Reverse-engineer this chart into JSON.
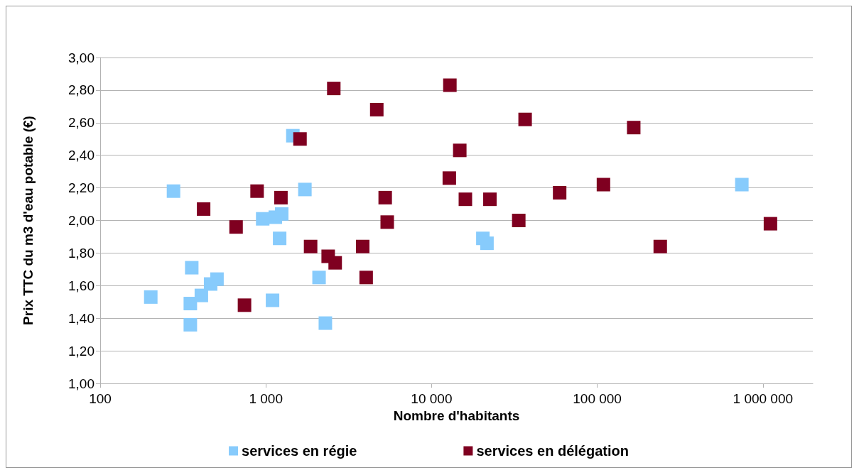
{
  "chart_data": {
    "type": "scatter",
    "xlabel": "Nombre d'habitants",
    "ylabel": "Prix TTC du m3 d'eau potable (€)",
    "log": "x",
    "grid": "y",
    "legend": "bottom",
    "marker": "square",
    "xlim": [
      100,
      2000000
    ],
    "xticks": [
      100,
      {
        "value": 1000,
        "label": "1 000"
      },
      {
        "value": 10000,
        "label": "10 000"
      },
      {
        "value": 100000,
        "label": "100 000"
      },
      {
        "value": 1000000,
        "label": "1 000 000"
      }
    ],
    "ylim": [
      1,
      3
    ],
    "yticks": [
      {
        "value": 1,
        "label": "1,00"
      },
      {
        "value": 1.2,
        "label": "1,20"
      },
      {
        "value": 1.4,
        "label": "1,40"
      },
      {
        "value": 1.6,
        "label": "1,60"
      },
      {
        "value": 1.8,
        "label": "1,80"
      },
      {
        "value": 2,
        "label": "2,00"
      },
      {
        "value": 2.2,
        "label": "2,20"
      },
      {
        "value": 2.4,
        "label": "2,40"
      },
      {
        "value": 2.6,
        "label": "2,60"
      },
      {
        "value": 2.8,
        "label": "2,80"
      },
      {
        "value": 3,
        "label": "3,00"
      }
    ],
    "series": [
      {
        "name": "services en régie",
        "color": "#87cbfc",
        "x": [
          202,
          277,
          357,
          350,
          350,
          408,
          464,
          507,
          957,
          1140,
          1246,
          1211,
          1097,
          1455,
          1720,
          2094,
          2286,
          20400,
          21600,
          746000
        ],
        "values": [
          1.53,
          2.18,
          1.71,
          1.49,
          1.36,
          1.54,
          1.61,
          1.64,
          2.01,
          2.02,
          2.04,
          1.89,
          1.51,
          2.52,
          2.19,
          1.65,
          1.37,
          1.89,
          1.86,
          2.22
        ]
      },
      {
        "name": "services en délégation",
        "color": "#7f0020",
        "x": [
          2570,
          4670,
          1607,
          421,
          661,
          885,
          1233,
          1862,
          2377,
          2620,
          743,
          3840,
          4030,
          5250,
          5400,
          12900,
          14800,
          12800,
          16000,
          22500,
          36700,
          33600,
          59300,
          109000,
          166000,
          240000,
          1110000
        ],
        "values": [
          2.81,
          2.68,
          2.5,
          2.07,
          1.96,
          2.18,
          2.14,
          1.84,
          1.78,
          1.74,
          1.48,
          1.84,
          1.65,
          2.14,
          1.99,
          2.83,
          2.43,
          2.26,
          2.13,
          2.13,
          2.62,
          2.0,
          2.17,
          2.22,
          2.57,
          1.84,
          1.98
        ]
      }
    ]
  }
}
